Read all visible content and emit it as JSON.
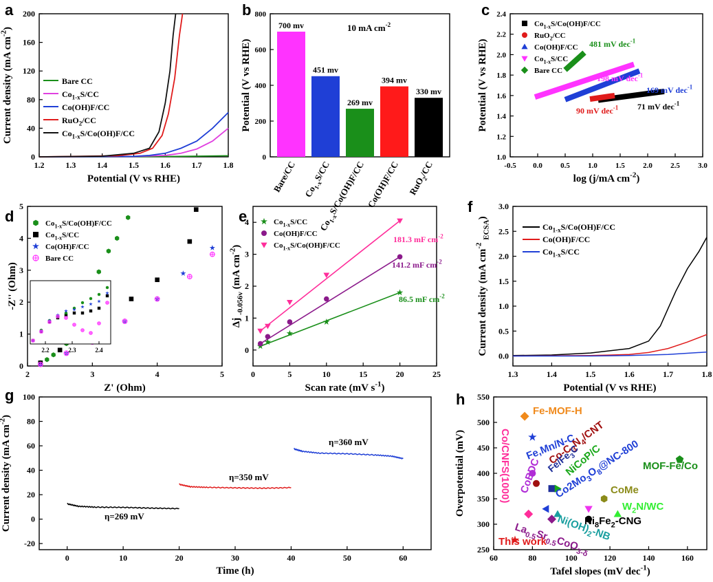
{
  "chart_data": [
    {
      "panel": "a",
      "type": "line",
      "xlabel": "Potential (V vs RHE)",
      "ylabel": "Current density (mA cm-2)",
      "xlim": [
        1.2,
        1.8
      ],
      "ylim": [
        0,
        200
      ],
      "xticks": [
        "1.2",
        "1.3",
        "1.4",
        "1.5",
        "1.6",
        "1.7",
        "1.8"
      ],
      "yticks": [
        "0",
        "40",
        "80",
        "120",
        "160",
        "200"
      ],
      "legend_position": "center-left",
      "series": [
        {
          "name": "Bare CC",
          "color": "#1a8f1a",
          "x": [
            1.2,
            1.4,
            1.6,
            1.7,
            1.8
          ],
          "y": [
            0,
            0.2,
            0.5,
            1.0,
            1.5
          ]
        },
        {
          "name": "Co1-xS/CC",
          "color": "#e040e0",
          "x": [
            1.2,
            1.5,
            1.6,
            1.65,
            1.7,
            1.75,
            1.8
          ],
          "y": [
            0,
            0.5,
            2,
            5,
            11,
            22,
            40
          ]
        },
        {
          "name": "Co(OH)F/CC",
          "color": "#1f3fd6",
          "x": [
            1.2,
            1.5,
            1.55,
            1.6,
            1.65,
            1.7,
            1.75,
            1.8
          ],
          "y": [
            0,
            0.7,
            2,
            5,
            12,
            22,
            40,
            62
          ]
        },
        {
          "name": "RuO2/CC",
          "color": "#e01b1b",
          "x": [
            1.2,
            1.45,
            1.52,
            1.56,
            1.59,
            1.61,
            1.63,
            1.645,
            1.655
          ],
          "y": [
            0,
            1.5,
            5,
            12,
            30,
            60,
            110,
            170,
            200
          ]
        },
        {
          "name": "Co1-xS/Co(OH)F/CC",
          "color": "#111111",
          "x": [
            1.2,
            1.4,
            1.5,
            1.55,
            1.58,
            1.6,
            1.615,
            1.625,
            1.633
          ],
          "y": [
            0,
            1,
            5,
            12,
            35,
            75,
            120,
            170,
            200
          ]
        }
      ]
    },
    {
      "panel": "b",
      "type": "bar",
      "title": "10 mA cm-2",
      "ylabel": "Potential (V vs RHE)",
      "ylim": [
        0,
        800
      ],
      "yticks": [
        "0",
        "200",
        "400",
        "600",
        "800"
      ],
      "categories": [
        "Bare/CC",
        "Co1-xS/CC",
        "Co1-xS/Co(OH)F/CC",
        "Co(OH)F/CC",
        "RuO2/CC"
      ],
      "values": [
        700,
        451,
        269,
        394,
        330
      ],
      "value_labels": [
        "700 mv",
        "451 mv",
        "269 mv",
        "394 mv",
        "330 mv"
      ],
      "colors": [
        "#ff33ff",
        "#1f3fd6",
        "#1a8f1a",
        "#ff1a1a",
        "#000000"
      ]
    },
    {
      "panel": "c",
      "type": "line",
      "xlabel": "log (j/mA cm-2)",
      "ylabel": "Potential (V vs RHE)",
      "xlim": [
        -0.5,
        3.0
      ],
      "ylim": [
        1.0,
        2.4
      ],
      "xticks": [
        "-0.5",
        "0.0",
        "0.5",
        "1.0",
        "1.5",
        "2.0",
        "2.5",
        "3.0"
      ],
      "yticks": [
        "1.0",
        "1.2",
        "1.4",
        "1.6",
        "1.8",
        "2.0",
        "2.2",
        "2.4"
      ],
      "legend_position": "top-left",
      "series": [
        {
          "name": "Co1-xS/Co(OH)F/CC",
          "color": "#000000",
          "marker": "square",
          "x": [
            1.1,
            2.3
          ],
          "y": [
            1.555,
            1.64
          ],
          "tafel": "71 mV dec-1"
        },
        {
          "name": "RuO2/CC",
          "color": "#e01b1b",
          "marker": "circle",
          "x": [
            0.95,
            1.4
          ],
          "y": [
            1.565,
            1.6
          ],
          "tafel": "90 mV dec-1"
        },
        {
          "name": "Co(OH)F/CC",
          "color": "#1f3fd6",
          "marker": "triangle",
          "x": [
            0.5,
            1.85
          ],
          "y": [
            1.56,
            1.84
          ],
          "tafel": "169 mV dec-1"
        },
        {
          "name": "Co1-xS/CC",
          "color": "#ff33ff",
          "marker": "triangle-down",
          "x": [
            -0.05,
            1.75
          ],
          "y": [
            1.585,
            1.905
          ],
          "tafel": "198 mV dec-1"
        },
        {
          "name": "Bare CC",
          "color": "#1a8f1a",
          "marker": "diamond",
          "x": [
            0.5,
            0.85
          ],
          "y": [
            1.85,
            2.02
          ],
          "tafel": "481 mV dec-1"
        }
      ]
    },
    {
      "panel": "d",
      "type": "scatter",
      "xlabel": "Z' (Ohm)",
      "ylabel": "-Z'' (Ohm)",
      "xlim": [
        2,
        5
      ],
      "ylim": [
        0,
        5
      ],
      "xticks": [
        "2",
        "3",
        "4",
        "5"
      ],
      "yticks": [
        "0",
        "1",
        "2",
        "3",
        "4",
        "5"
      ],
      "inset_xticks": [
        "2.2",
        "2.3",
        "2.4"
      ],
      "legend_position": "top-left",
      "series": [
        {
          "name": "Co1-xS/Co(OH)F/CC",
          "color": "#1a8f1a",
          "marker": "hexagon",
          "x": [
            2.2,
            2.3,
            2.4,
            2.6,
            2.8,
            2.95,
            3.1,
            3.25,
            3.38,
            3.55
          ],
          "y": [
            0.1,
            0.2,
            0.35,
            0.7,
            1.4,
            2.1,
            2.95,
            3.6,
            4.0,
            4.65
          ]
        },
        {
          "name": "Co1-xS/CC",
          "color": "#000000",
          "marker": "square",
          "x": [
            2.2,
            2.5,
            2.8,
            3.2,
            3.6,
            4.0,
            4.5,
            4.6
          ],
          "y": [
            0.1,
            0.5,
            1.0,
            1.55,
            2.1,
            2.7,
            3.9,
            4.9
          ]
        },
        {
          "name": "Co(OH)F/CC",
          "color": "#1f3fd6",
          "marker": "star",
          "x": [
            2.2,
            2.6,
            3.0,
            3.5,
            4.0,
            4.4,
            4.85
          ],
          "y": [
            0.05,
            0.4,
            0.8,
            1.4,
            2.1,
            2.9,
            3.7
          ]
        },
        {
          "name": "Bare CC",
          "color": "#ff33ff",
          "marker": "circle-cross",
          "x": [
            2.2,
            2.6,
            3.0,
            3.5,
            4.0,
            4.5,
            4.85
          ],
          "y": [
            0.05,
            0.4,
            0.75,
            1.4,
            2.1,
            2.8,
            3.5
          ]
        }
      ]
    },
    {
      "panel": "e",
      "type": "scatter",
      "xlabel": "Scan rate (mV s-1)",
      "ylabel": "Δj -0.056v (mA cm-2)",
      "xlim": [
        0,
        25
      ],
      "ylim": [
        -0.5,
        4.5
      ],
      "xticks": [
        "0",
        "5",
        "10",
        "15",
        "20",
        "25"
      ],
      "yticks": [
        "0",
        "1",
        "2",
        "3",
        "4"
      ],
      "legend_position": "top-left",
      "series": [
        {
          "name": "Co1-xS/CC",
          "color": "#1a8f1a",
          "marker": "star",
          "x": [
            1,
            2,
            5,
            10,
            20
          ],
          "y": [
            0.12,
            0.25,
            0.52,
            0.88,
            1.8
          ],
          "capacitance": "86.5 mF cm-2"
        },
        {
          "name": "Co(OH)F/CC",
          "color": "#8b1a8b",
          "marker": "circle",
          "x": [
            1,
            2,
            5,
            10,
            20
          ],
          "y": [
            0.2,
            0.42,
            0.88,
            1.6,
            2.92
          ],
          "capacitance": "141.2 mF cm-2"
        },
        {
          "name": "Co1-xS/Co(OH)F/CC",
          "color": "#ff2d9a",
          "marker": "triangle-down",
          "x": [
            1,
            2,
            5,
            10,
            20
          ],
          "y": [
            0.6,
            0.75,
            1.5,
            2.35,
            4.05
          ],
          "capacitance": "181.3 mF cm-2"
        }
      ]
    },
    {
      "panel": "f",
      "type": "line",
      "xlabel": "Potential (V vs RHE)",
      "ylabel": "Current density (mA cm-2 ECSA)",
      "xlim": [
        1.3,
        1.8
      ],
      "ylim": [
        -0.2,
        3.0
      ],
      "xticks": [
        "1.3",
        "1.4",
        "1.5",
        "1.6",
        "1.7",
        "1.8"
      ],
      "yticks": [
        "0.0",
        "0.5",
        "1.0",
        "1.5",
        "2.0",
        "2.5",
        "3.0"
      ],
      "legend_position": "top-left",
      "series": [
        {
          "name": "Co1-xS/Co(OH)F/CC",
          "color": "#000000",
          "x": [
            1.3,
            1.4,
            1.5,
            1.6,
            1.65,
            1.68,
            1.7,
            1.72,
            1.75,
            1.78,
            1.8
          ],
          "y": [
            0.01,
            0.02,
            0.06,
            0.15,
            0.3,
            0.6,
            0.95,
            1.3,
            1.75,
            2.1,
            2.38
          ]
        },
        {
          "name": "Co(OH)F/CC",
          "color": "#e01b1b",
          "x": [
            1.3,
            1.5,
            1.6,
            1.65,
            1.7,
            1.75,
            1.8
          ],
          "y": [
            0.0,
            0.01,
            0.03,
            0.07,
            0.15,
            0.28,
            0.43
          ]
        },
        {
          "name": "Co1-xS/CC",
          "color": "#1f3fd6",
          "x": [
            1.3,
            1.5,
            1.6,
            1.7,
            1.8
          ],
          "y": [
            0.0,
            0.0,
            0.01,
            0.03,
            0.08
          ]
        }
      ]
    },
    {
      "panel": "g",
      "type": "line",
      "xlabel": "Time (h)",
      "ylabel": "Current density (mA cm-2)",
      "xlim": [
        -5,
        65
      ],
      "ylim": [
        -25,
        100
      ],
      "xticks": [
        "0",
        "10",
        "20",
        "30",
        "40",
        "50",
        "60"
      ],
      "yticks": [
        "-20",
        "0",
        "20",
        "40",
        "60",
        "80",
        "100"
      ],
      "series": [
        {
          "name": "η=269 mV",
          "color": "#000000",
          "x": [
            0,
            2,
            5,
            10,
            15,
            20
          ],
          "y": [
            12.5,
            10.5,
            9.8,
            9.6,
            9.0,
            8.6
          ]
        },
        {
          "name": "η=350 mV",
          "color": "#e01b1b",
          "x": [
            20,
            22,
            25,
            30,
            35,
            40
          ],
          "y": [
            28.5,
            26.5,
            26.0,
            25.6,
            25.3,
            25.8
          ]
        },
        {
          "name": "η=360 mV",
          "color": "#1f3fd6",
          "x": [
            40.5,
            42,
            45,
            50,
            55,
            58,
            60
          ],
          "y": [
            57.5,
            55.5,
            54.0,
            53.5,
            52.5,
            51.5,
            49.5
          ]
        }
      ]
    },
    {
      "panel": "h",
      "type": "scatter",
      "xlabel": "Tafel slopes (mV dec-1)",
      "ylabel": "Overpotential (mV)",
      "xlim": [
        60,
        170
      ],
      "ylim": [
        250,
        550
      ],
      "xticks": [
        "60",
        "80",
        "100",
        "120",
        "140",
        "160"
      ],
      "yticks": [
        "250",
        "300",
        "350",
        "400",
        "450",
        "500",
        "550"
      ],
      "points": [
        {
          "name": "Fe-MOF-H",
          "color": "#f08a1c",
          "marker": "diamond",
          "x": 76,
          "y": 512
        },
        {
          "name": "Fe,Mn/N-C",
          "color": "#1f3fd6",
          "marker": "star",
          "x": 80,
          "y": 471
        },
        {
          "name": "Co-C3N4/CNT",
          "color": "#a01010",
          "marker": "circle",
          "x": 82,
          "y": 380
        },
        {
          "name": "Fe/Fe3C",
          "color": "#1f2f9a",
          "marker": "square",
          "x": 90,
          "y": 370
        },
        {
          "name": "NiCoP/C",
          "color": "#1aa81a",
          "marker": "triangle-right",
          "x": 93,
          "y": 370
        },
        {
          "name": "Co2Mo3O8@NC-800",
          "color": "#1f3fd6",
          "marker": "triangle-left",
          "x": 87,
          "y": 330
        },
        {
          "name": "CoBDC",
          "color": "#b02cd6",
          "marker": "circle",
          "x": 80,
          "y": 400
        },
        {
          "name": "Co/CNFS(1000)",
          "color": "#ff2d9a",
          "marker": "diamond",
          "x": 78,
          "y": 320
        },
        {
          "name": "MOF-Fe/Co",
          "color": "#1a8f1a",
          "marker": "pentagon",
          "x": 156,
          "y": 427
        },
        {
          "name": "CoMe",
          "color": "#8b8b1a",
          "marker": "hexagon",
          "x": 117,
          "y": 350
        },
        {
          "name": "W2N/WC",
          "color": "#33ee33",
          "marker": "triangle",
          "x": 124,
          "y": 320
        },
        {
          "name": "Ni8Fe2-CNG",
          "color": "#000000",
          "marker": "circle",
          "x": 109,
          "y": 310
        },
        {
          "name": "Ni(OH)2-NB",
          "color": "#1a9fa0",
          "marker": "triangle",
          "x": 93,
          "y": 320
        },
        {
          "name": "La0.5Sr0.5CoO3-δ",
          "color": "#8b1a8b",
          "marker": "diamond",
          "x": 90,
          "y": 310
        },
        {
          "name": "unlabeled",
          "color": "#ee33ee",
          "marker": "triangle-down",
          "x": 109,
          "y": 330
        },
        {
          "name": "This work",
          "color": "#e01b1b",
          "marker": "star",
          "x": 71,
          "y": 269
        }
      ]
    }
  ]
}
